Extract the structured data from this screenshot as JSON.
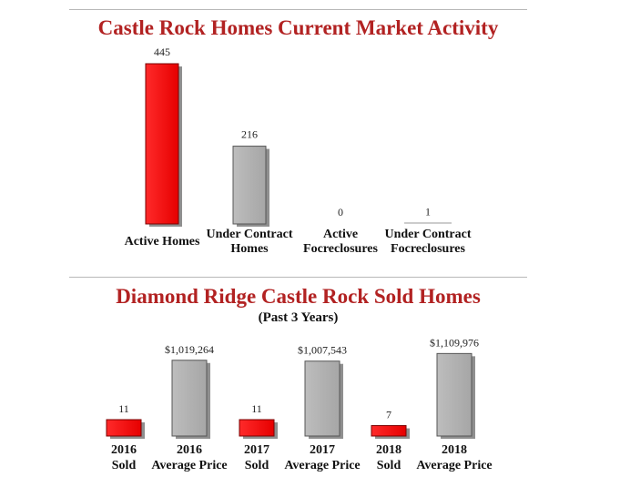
{
  "chart_data": [
    {
      "type": "bar",
      "title": "Castle Rock Homes Current Market Activity",
      "categories": [
        [
          "Active Homes"
        ],
        [
          "Under Contract",
          "Homes"
        ],
        [
          "Active",
          "Focreclosures"
        ],
        [
          "Under Contract",
          "Focreclosures"
        ]
      ],
      "values": [
        445,
        216,
        0,
        1
      ],
      "value_labels": [
        "445",
        "216",
        "0",
        "1"
      ],
      "bar_colors": [
        "#ff0000",
        "#b0b0b0",
        "#b0b0b0",
        "#b0b0b0"
      ],
      "ylim": [
        0,
        445
      ],
      "grid": false,
      "legend": "none"
    },
    {
      "type": "bar",
      "title": "Diamond Ridge Castle Rock Sold Homes",
      "subtitle": "(Past 3 Years)",
      "categories": [
        [
          "2016",
          "Sold"
        ],
        [
          "2016",
          "Average Price"
        ],
        [
          "2017",
          "Sold"
        ],
        [
          "2017",
          "Average Price"
        ],
        [
          "2018",
          "Sold"
        ],
        [
          "2018",
          "Average Price"
        ]
      ],
      "values": [
        11,
        1019264,
        11,
        1007543,
        7,
        1109976
      ],
      "value_labels": [
        "11",
        "$1,019,264",
        "11",
        "$1,007,543",
        "7",
        "$1,109,976"
      ],
      "bar_colors": [
        "#ff0000",
        "#b0b0b0",
        "#ff0000",
        "#b0b0b0",
        "#ff0000",
        "#b0b0b0"
      ],
      "grid": false,
      "legend": "none"
    }
  ]
}
